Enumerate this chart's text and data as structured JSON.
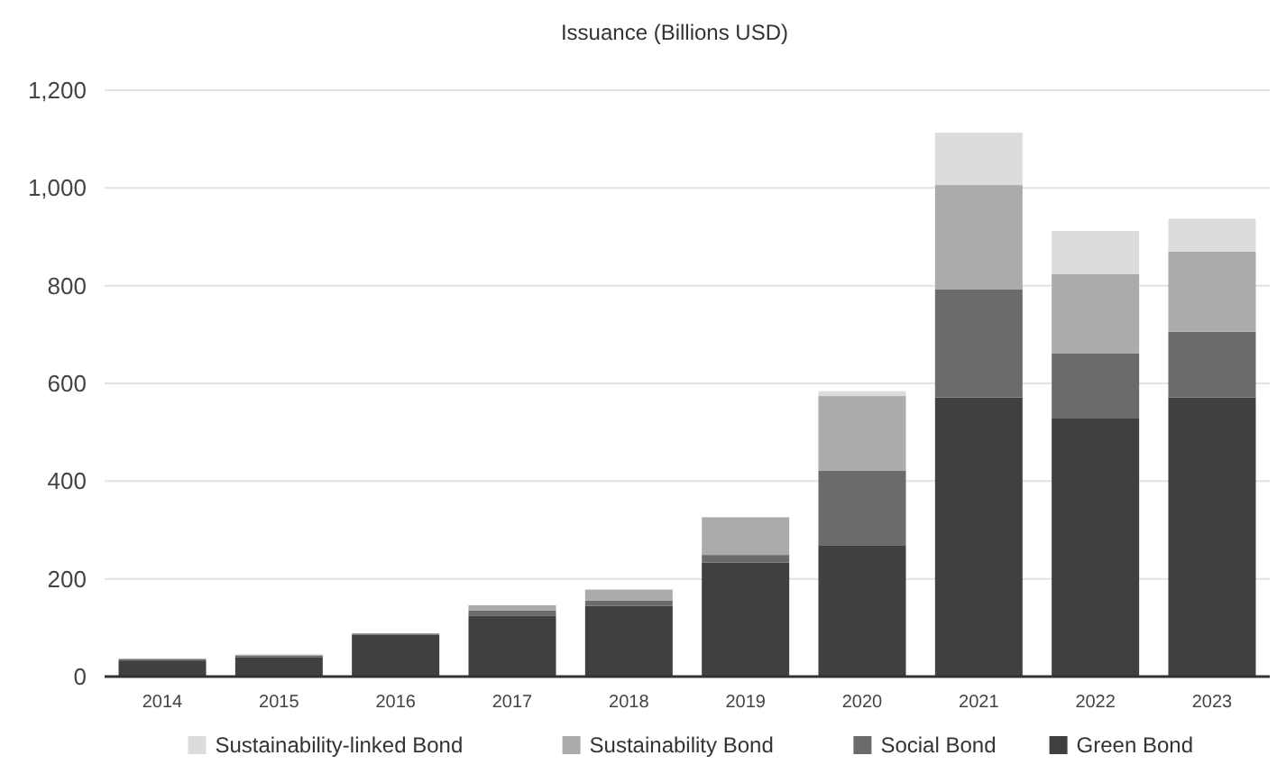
{
  "chart_data": {
    "type": "bar",
    "title": "Issuance (Billions USD)",
    "stacked": true,
    "categories": [
      "2014",
      "2015",
      "2016",
      "2017",
      "2018",
      "2019",
      "2020",
      "2021",
      "2022",
      "2023"
    ],
    "series": [
      {
        "name": "Green Bond",
        "color": "#404040",
        "values": [
          33,
          40,
          86,
          125,
          145,
          233,
          269,
          571,
          528,
          571
        ]
      },
      {
        "name": "Social Bond",
        "color": "#6b6b6b",
        "values": [
          2,
          3,
          2,
          10,
          11,
          16,
          152,
          221,
          133,
          135
        ]
      },
      {
        "name": "Sustainability Bond",
        "color": "#ababab",
        "values": [
          2,
          2,
          null,
          11,
          22,
          77,
          153,
          214,
          163,
          164
        ]
      },
      {
        "name": "Sustainability-linked Bond",
        "color": "#dcdcdc",
        "values": [
          0,
          0,
          0,
          null,
          null,
          null,
          10,
          107,
          88,
          67
        ]
      }
    ],
    "ylim": [
      0,
      1200
    ],
    "yticks": [
      {
        "value": 0,
        "label": "0"
      },
      {
        "value": 200,
        "label": "200"
      },
      {
        "value": 400,
        "label": "400"
      },
      {
        "value": 600,
        "label": "600"
      },
      {
        "value": 800,
        "label": "800"
      },
      {
        "value": 1000,
        "label": "1,000"
      },
      {
        "value": 1200,
        "label": "1,200"
      }
    ],
    "grid": "y",
    "legend": "bottom"
  }
}
